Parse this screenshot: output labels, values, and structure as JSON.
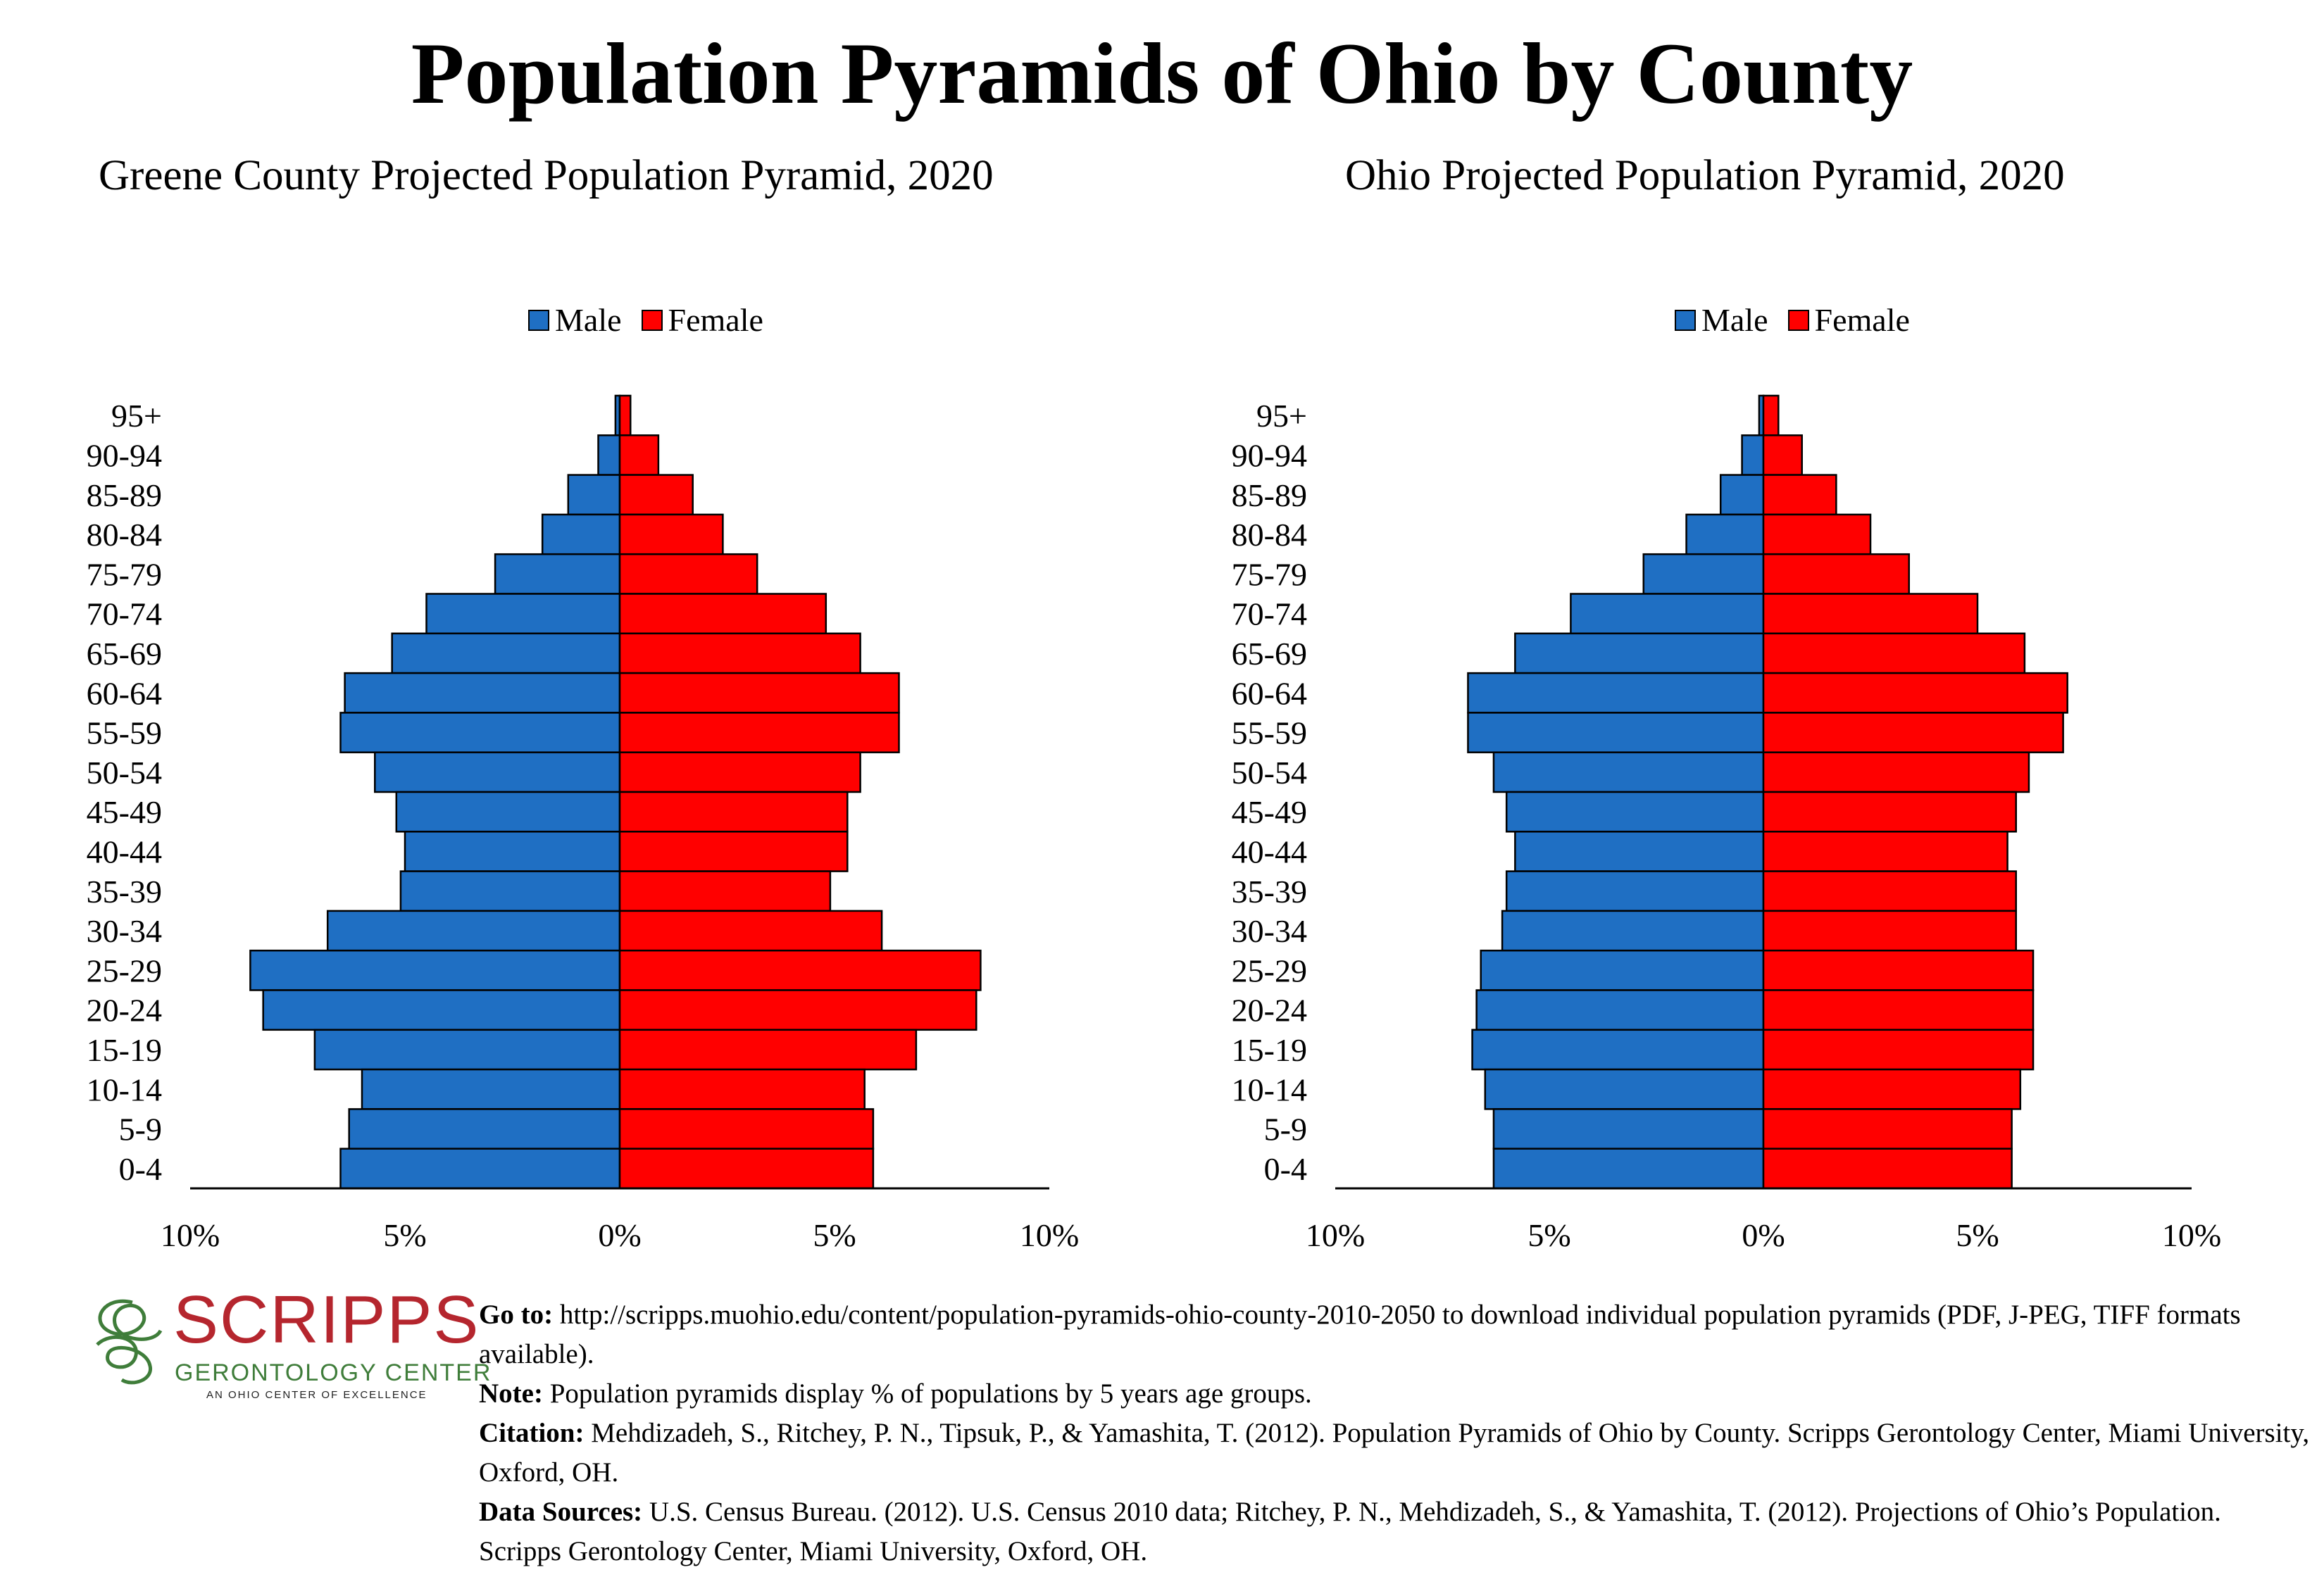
{
  "title": "Population Pyramids of Ohio by County",
  "colors": {
    "male": "#1f6fc3",
    "female": "#ff0000"
  },
  "chart_data": [
    {
      "type": "bar",
      "orientation": "horizontal-pyramid",
      "title": "Greene County Projected Population Pyramid, 2020",
      "categories": [
        "95+",
        "90-94",
        "85-89",
        "80-84",
        "75-79",
        "70-74",
        "65-69",
        "60-64",
        "55-59",
        "50-54",
        "45-49",
        "40-44",
        "35-39",
        "30-34",
        "25-29",
        "20-24",
        "15-19",
        "10-14",
        "5-9",
        "0-4"
      ],
      "series": [
        {
          "name": "Male",
          "values": [
            0.1,
            0.5,
            1.2,
            1.8,
            2.9,
            4.5,
            5.3,
            6.4,
            6.5,
            5.7,
            5.2,
            5.0,
            5.1,
            6.8,
            8.6,
            8.3,
            7.1,
            6.0,
            6.3,
            6.5
          ]
        },
        {
          "name": "Female",
          "values": [
            0.25,
            0.9,
            1.7,
            2.4,
            3.2,
            4.8,
            5.6,
            6.5,
            6.5,
            5.6,
            5.3,
            5.3,
            4.9,
            6.1,
            8.4,
            8.3,
            6.9,
            5.7,
            5.9,
            5.9
          ]
        }
      ],
      "xlim": [
        -10,
        10
      ],
      "xticks": [
        "10%",
        "5%",
        "0%",
        "5%",
        "10%"
      ],
      "legend": "top-center"
    },
    {
      "type": "bar",
      "orientation": "horizontal-pyramid",
      "title": "Ohio Projected Population Pyramid, 2020",
      "categories": [
        "95+",
        "90-94",
        "85-89",
        "80-84",
        "75-79",
        "70-74",
        "65-69",
        "60-64",
        "55-59",
        "50-54",
        "45-49",
        "40-44",
        "35-39",
        "30-34",
        "25-29",
        "20-24",
        "15-19",
        "10-14",
        "5-9",
        "0-4"
      ],
      "series": [
        {
          "name": "Male",
          "values": [
            0.1,
            0.5,
            1.0,
            1.8,
            2.8,
            4.5,
            5.8,
            6.9,
            6.9,
            6.3,
            6.0,
            5.8,
            6.0,
            6.1,
            6.6,
            6.7,
            6.8,
            6.5,
            6.3,
            6.3
          ]
        },
        {
          "name": "Female",
          "values": [
            0.35,
            0.9,
            1.7,
            2.5,
            3.4,
            5.0,
            6.1,
            7.1,
            7.0,
            6.2,
            5.9,
            5.7,
            5.9,
            5.9,
            6.3,
            6.3,
            6.3,
            6.0,
            5.8,
            5.8
          ]
        }
      ],
      "xlim": [
        -10,
        10
      ],
      "xticks": [
        "10%",
        "5%",
        "0%",
        "5%",
        "10%"
      ],
      "legend": "top-center"
    }
  ],
  "logo": {
    "name": "SCRIPPS",
    "line1": "GERONTOLOGY CENTER",
    "line2": "AN OHIO CENTER OF EXCELLENCE"
  },
  "footer": {
    "goto_label": "Go to:",
    "goto_text": " http://scripps.muohio.edu/content/population-pyramids-ohio-county-2010-2050 to download individual population pyramids (PDF, J-PEG, TIFF formats available).",
    "note_label": "Note:",
    "note_text": " Population pyramids display % of populations by 5 years age groups.",
    "citation_label": "Citation:",
    "citation_text": " Mehdizadeh, S., Ritchey, P. N., Tipsuk, P., & Yamashita, T. (2012). Population Pyramids of Ohio by County. Scripps Gerontology Center, Miami University, Oxford, OH.",
    "sources_label": "Data Sources:",
    "sources_text": " U.S. Census Bureau. (2012). U.S. Census 2010 data; Ritchey, P. N., Mehdizadeh, S., & Yamashita, T. (2012). Projections of Ohio’s Population. Scripps Gerontology Center, Miami University, Oxford, OH."
  }
}
